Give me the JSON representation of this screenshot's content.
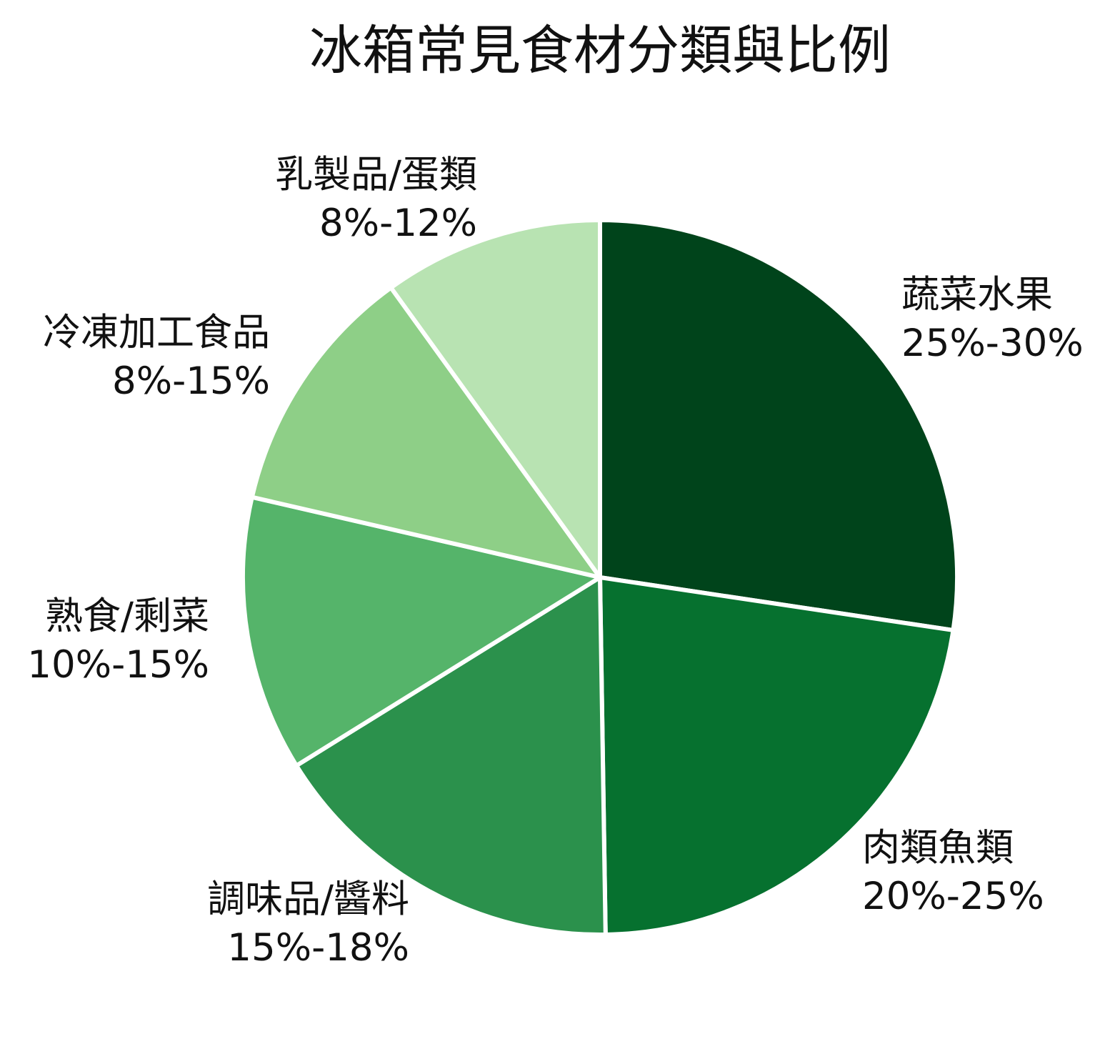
{
  "chart_data": {
    "type": "pie",
    "title": "冰箱常見食材分類與比例",
    "start_angle_deg": 90,
    "direction": "clockwise",
    "slices": [
      {
        "label": "蔬菜水果",
        "range_text": "25%-30%",
        "value": 27.5,
        "color": "#00441b"
      },
      {
        "label": "肉類魚類",
        "range_text": "20%-25%",
        "value": 22.5,
        "color": "#06712f"
      },
      {
        "label": "調味品/醬料",
        "range_text": "15%-18%",
        "value": 16.5,
        "color": "#2b914c"
      },
      {
        "label": "熟食/剩菜",
        "range_text": "10%-15%",
        "value": 12.5,
        "color": "#55b46a"
      },
      {
        "label": "冷凍加工食品",
        "range_text": "8%-15%",
        "value": 11.5,
        "color": "#8ecf87"
      },
      {
        "label": "乳製品/蛋類",
        "range_text": "8%-12%",
        "value": 10,
        "color": "#b8e3b2"
      }
    ]
  }
}
